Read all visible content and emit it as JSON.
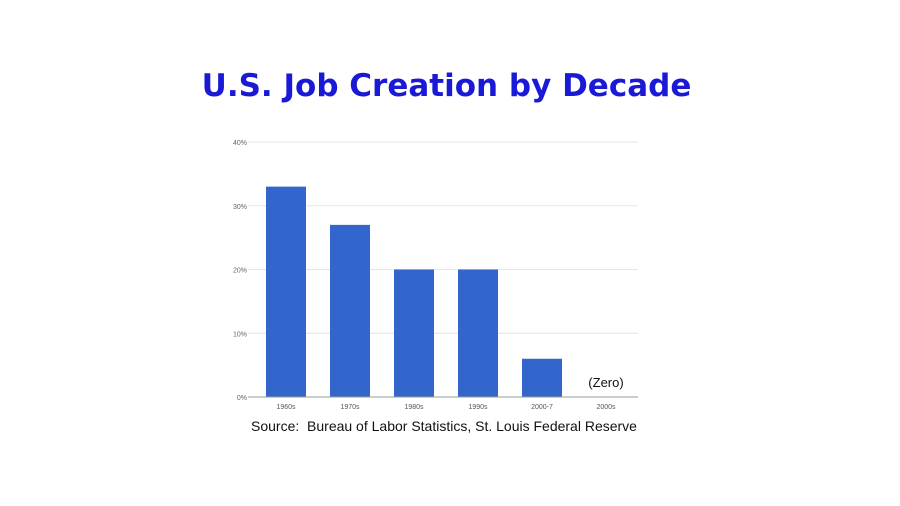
{
  "chart_data": {
    "type": "bar",
    "title": "U.S. Job Creation by Decade",
    "categories": [
      "1960s",
      "1970s",
      "1980s",
      "1990s",
      "2000-7",
      "2000s"
    ],
    "values": [
      33,
      27,
      20,
      20,
      6,
      0
    ],
    "ylim": [
      0,
      40
    ],
    "yticks": [
      "0%",
      "10%",
      "20%",
      "30%",
      "40%"
    ],
    "ytick_values": [
      0,
      10,
      20,
      30,
      40
    ],
    "grid": true,
    "bar_color": "#3366cc",
    "annotations": [
      {
        "category": "2000s",
        "text": "(Zero)"
      }
    ],
    "source": "Source:  Bureau of Labor Statistics, St. Louis Federal Reserve"
  }
}
